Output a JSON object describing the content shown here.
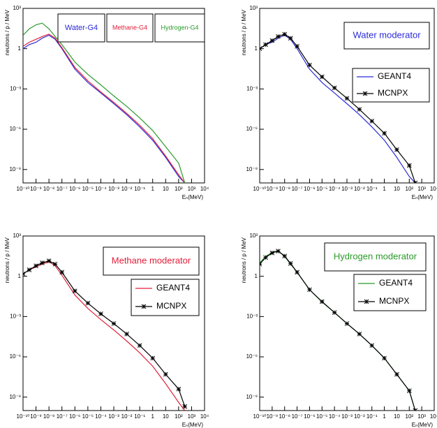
{
  "chart_data": [
    {
      "type": "line",
      "xlabel": "Eₙ(MeV)",
      "ylabel": "neutrons / p / MeV",
      "x_scale": "log",
      "y_scale": "log",
      "legend_style": "boxes",
      "xlim": [
        1e-10,
        10000
      ],
      "ylim": [
        1e-10,
        1000
      ],
      "xticks": [
        {
          "value": 1e-10,
          "label": "10⁻¹⁰"
        },
        {
          "value": 1e-09,
          "label": "10⁻⁹"
        },
        {
          "value": 1e-08,
          "label": "10⁻⁸"
        },
        {
          "value": 1e-07,
          "label": "10⁻⁷"
        },
        {
          "value": 1e-06,
          "label": "10⁻⁶"
        },
        {
          "value": 1e-05,
          "label": "10⁻⁵"
        },
        {
          "value": 0.0001,
          "label": "10⁻⁴"
        },
        {
          "value": 0.001,
          "label": "10⁻³"
        },
        {
          "value": 0.01,
          "label": "10⁻²"
        },
        {
          "value": 0.1,
          "label": "10⁻¹"
        },
        1,
        10,
        {
          "value": 100,
          "label": "10²"
        },
        {
          "value": 1000,
          "label": "10³"
        },
        {
          "value": 10000,
          "label": "10⁴"
        }
      ],
      "yticks": [
        {
          "value": 1e-09,
          "label": "10⁻⁹"
        },
        {
          "value": 1e-06,
          "label": "10⁻⁶"
        },
        {
          "value": 0.001,
          "label": "10⁻³"
        },
        1,
        {
          "value": 1000,
          "label": "10³"
        }
      ],
      "x": [
        1e-10,
        3e-10,
        1e-09,
        3e-09,
        1e-08,
        3e-08,
        1e-07,
        1e-06,
        1e-05,
        0.0001,
        0.001,
        0.01,
        0.1,
        1,
        10,
        100,
        300
      ],
      "series": [
        {
          "name": "Water-G4",
          "color": "#2b2bd9",
          "marker": "none",
          "values": [
            1,
            2,
            3,
            6,
            10,
            5,
            1,
            0.03,
            0.003,
            0.0005,
            8e-05,
            1.2e-05,
            1.5e-06,
            1.5e-07,
            8e-09,
            3e-10,
            1e-10
          ]
        },
        {
          "name": "Methane-G4",
          "color": "#e0203a",
          "marker": "none",
          "values": [
            1.5,
            3,
            5,
            8,
            12,
            6,
            1.2,
            0.04,
            0.004,
            0.0006,
            0.0001,
            1.5e-05,
            2e-06,
            2e-07,
            1e-08,
            4e-10,
            1e-10
          ]
        },
        {
          "name": "Hydrogen-G4",
          "color": "#2a9a2a",
          "marker": "none",
          "values": [
            10,
            30,
            60,
            80,
            30,
            8,
            2,
            0.1,
            0.012,
            0.002,
            0.0003,
            5e-05,
            7e-06,
            8e-07,
            5e-08,
            3e-09,
            1e-10
          ]
        }
      ]
    },
    {
      "type": "line",
      "title": "Water moderator",
      "title_color": "#2b2bd9",
      "xlabel": "Eₙ(MeV)",
      "ylabel": "neutrons / p / MeV",
      "x_scale": "log",
      "y_scale": "log",
      "legend_style": "box",
      "xlim": [
        1e-10,
        10000
      ],
      "ylim": [
        1e-10,
        1000
      ],
      "xticks": [
        {
          "value": 1e-10,
          "label": "10⁻¹⁰"
        },
        {
          "value": 1e-09,
          "label": "10⁻⁹"
        },
        {
          "value": 1e-08,
          "label": "10⁻⁸"
        },
        {
          "value": 1e-07,
          "label": "10⁻⁷"
        },
        {
          "value": 1e-06,
          "label": "10⁻⁶"
        },
        {
          "value": 1e-05,
          "label": "10⁻⁵"
        },
        {
          "value": 0.0001,
          "label": "10⁻⁴"
        },
        {
          "value": 0.001,
          "label": "10⁻³"
        },
        {
          "value": 0.01,
          "label": "10⁻²"
        },
        {
          "value": 0.1,
          "label": "10⁻¹"
        },
        1,
        10,
        {
          "value": 100,
          "label": "10²"
        },
        {
          "value": 1000,
          "label": "10³"
        },
        {
          "value": 10000,
          "label": "10⁴"
        }
      ],
      "yticks": [
        {
          "value": 1e-09,
          "label": "10⁻⁹"
        },
        {
          "value": 1e-06,
          "label": "10⁻⁶"
        },
        {
          "value": 0.001,
          "label": "10⁻³"
        },
        1,
        {
          "value": 1000,
          "label": "10³"
        }
      ],
      "x": [
        1e-10,
        3e-10,
        1e-09,
        3e-09,
        1e-08,
        3e-08,
        1e-07,
        1e-06,
        1e-05,
        0.0001,
        0.001,
        0.01,
        0.1,
        1,
        10,
        100,
        300
      ],
      "series": [
        {
          "name": "GEANT4",
          "color": "#2b2bd9",
          "marker": "none",
          "values": [
            1,
            2,
            3,
            6,
            10,
            5,
            1,
            0.03,
            0.003,
            0.0005,
            8e-05,
            1.2e-05,
            1.5e-06,
            1.5e-07,
            8e-09,
            3e-10,
            1e-10
          ]
        },
        {
          "name": "MCNPX",
          "color": "#000000",
          "marker": "star",
          "values": [
            1,
            2,
            4,
            8,
            12,
            6,
            1.5,
            0.06,
            0.008,
            0.0012,
            0.0002,
            3e-05,
            4e-06,
            5e-07,
            3e-08,
            2e-09,
            1e-10
          ]
        }
      ]
    },
    {
      "type": "line",
      "title": "Methane moderator",
      "title_color": "#e0203a",
      "xlabel": "Eₙ(MeV)",
      "ylabel": "neutrons / p / MeV",
      "x_scale": "log",
      "y_scale": "log",
      "legend_style": "box",
      "xlim": [
        1e-10,
        10000
      ],
      "ylim": [
        1e-10,
        1000
      ],
      "xticks": [
        {
          "value": 1e-10,
          "label": "10⁻¹⁰"
        },
        {
          "value": 1e-09,
          "label": "10⁻⁹"
        },
        {
          "value": 1e-08,
          "label": "10⁻⁸"
        },
        {
          "value": 1e-07,
          "label": "10⁻⁷"
        },
        {
          "value": 1e-06,
          "label": "10⁻⁶"
        },
        {
          "value": 1e-05,
          "label": "10⁻⁵"
        },
        {
          "value": 0.0001,
          "label": "10⁻⁴"
        },
        {
          "value": 0.001,
          "label": "10⁻³"
        },
        {
          "value": 0.01,
          "label": "10⁻²"
        },
        {
          "value": 0.1,
          "label": "10⁻¹"
        },
        1,
        10,
        {
          "value": 100,
          "label": "10²"
        },
        {
          "value": 1000,
          "label": "10³"
        },
        {
          "value": 10000,
          "label": "10⁴"
        }
      ],
      "yticks": [
        {
          "value": 1e-09,
          "label": "10⁻⁹"
        },
        {
          "value": 1e-06,
          "label": "10⁻⁶"
        },
        {
          "value": 0.001,
          "label": "10⁻³"
        },
        1,
        {
          "value": 1000,
          "label": "10³"
        }
      ],
      "x": [
        1e-10,
        3e-10,
        1e-09,
        3e-09,
        1e-08,
        3e-08,
        1e-07,
        1e-06,
        1e-05,
        0.0001,
        0.001,
        0.01,
        0.1,
        1,
        10,
        100,
        300
      ],
      "series": [
        {
          "name": "GEANT4",
          "color": "#e0203a",
          "marker": "none",
          "values": [
            1.5,
            3,
            5,
            8,
            12,
            6,
            1.2,
            0.04,
            0.004,
            0.0006,
            0.0001,
            1.5e-05,
            2e-06,
            2e-07,
            1e-08,
            4e-10,
            1e-10
          ]
        },
        {
          "name": "MCNPX",
          "color": "#000000",
          "marker": "star",
          "values": [
            1.5,
            3,
            6,
            10,
            14,
            8,
            2,
            0.08,
            0.01,
            0.0016,
            0.0003,
            5e-05,
            7e-06,
            8e-07,
            5e-08,
            4e-09,
            2e-10
          ]
        }
      ]
    },
    {
      "type": "line",
      "title": "Hydrogen moderator",
      "title_color": "#2a9a2a",
      "xlabel": "Eₙ(MeV)",
      "ylabel": "neutrons / p / MeV",
      "x_scale": "log",
      "y_scale": "log",
      "legend_style": "box",
      "xlim": [
        1e-10,
        10000
      ],
      "ylim": [
        1e-10,
        1000
      ],
      "xticks": [
        {
          "value": 1e-10,
          "label": "10⁻¹⁰"
        },
        {
          "value": 1e-09,
          "label": "10⁻⁹"
        },
        {
          "value": 1e-08,
          "label": "10⁻⁸"
        },
        {
          "value": 1e-07,
          "label": "10⁻⁷"
        },
        {
          "value": 1e-06,
          "label": "10⁻⁶"
        },
        {
          "value": 1e-05,
          "label": "10⁻⁵"
        },
        {
          "value": 0.0001,
          "label": "10⁻⁴"
        },
        {
          "value": 0.001,
          "label": "10⁻³"
        },
        {
          "value": 0.01,
          "label": "10⁻²"
        },
        {
          "value": 0.1,
          "label": "10⁻¹"
        },
        1,
        10,
        {
          "value": 100,
          "label": "10²"
        },
        {
          "value": 1000,
          "label": "10³"
        },
        {
          "value": 10000,
          "label": "10⁴"
        }
      ],
      "yticks": [
        {
          "value": 1e-09,
          "label": "10⁻⁹"
        },
        {
          "value": 1e-06,
          "label": "10⁻⁶"
        },
        {
          "value": 0.001,
          "label": "10⁻³"
        },
        1,
        {
          "value": 1000,
          "label": "10³"
        }
      ],
      "x": [
        1e-10,
        3e-10,
        1e-09,
        3e-09,
        1e-08,
        3e-08,
        1e-07,
        1e-06,
        1e-05,
        0.0001,
        0.001,
        0.01,
        0.1,
        1,
        10,
        100,
        300
      ],
      "series": [
        {
          "name": "GEANT4",
          "color": "#2a9a2a",
          "marker": "none",
          "values": [
            10,
            30,
            60,
            80,
            30,
            8,
            2,
            0.1,
            0.012,
            0.002,
            0.0003,
            5e-05,
            7e-06,
            8e-07,
            5e-08,
            3e-09,
            1e-10
          ]
        },
        {
          "name": "MCNPX",
          "color": "#000000",
          "marker": "star",
          "values": [
            8,
            25,
            55,
            75,
            32,
            9,
            2,
            0.1,
            0.013,
            0.002,
            0.0003,
            5e-05,
            7e-06,
            8e-07,
            5e-08,
            3e-09,
            1e-10
          ]
        }
      ]
    }
  ]
}
